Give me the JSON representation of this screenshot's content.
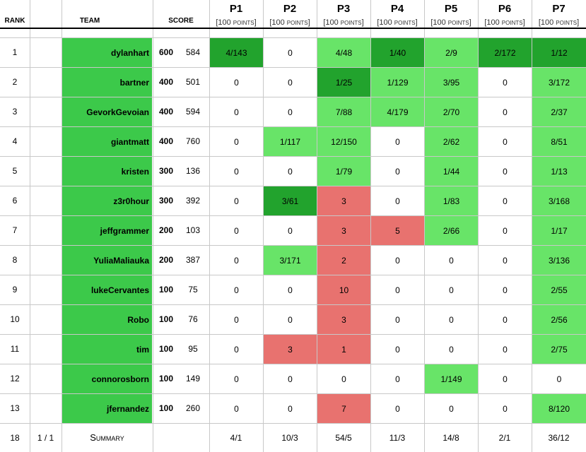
{
  "header": {
    "rank": "RANK",
    "team": "TEAM",
    "score": "SCORE",
    "problems": [
      {
        "name": "P1",
        "points": "[100 points]"
      },
      {
        "name": "P2",
        "points": "[100 points]"
      },
      {
        "name": "P3",
        "points": "[100 points]"
      },
      {
        "name": "P4",
        "points": "[100 points]"
      },
      {
        "name": "P5",
        "points": "[100 points]"
      },
      {
        "name": "P6",
        "points": "[100 points]"
      },
      {
        "name": "P7",
        "points": "[100 points]"
      }
    ]
  },
  "colors": {
    "team": "#3cc94a",
    "first": "#22a32d",
    "solved": "#68e468",
    "failed": "#e8726f",
    "none": "#ffffff"
  },
  "rows": [
    {
      "rank": 1,
      "team": "dylanhart",
      "points": 600,
      "time": 584,
      "cells": [
        {
          "text": "4/143",
          "status": "first"
        },
        {
          "text": "0",
          "status": "none"
        },
        {
          "text": "4/48",
          "status": "solved"
        },
        {
          "text": "1/40",
          "status": "first"
        },
        {
          "text": "2/9",
          "status": "solved"
        },
        {
          "text": "2/172",
          "status": "first"
        },
        {
          "text": "1/12",
          "status": "first"
        }
      ]
    },
    {
      "rank": 2,
      "team": "bartner",
      "points": 400,
      "time": 501,
      "cells": [
        {
          "text": "0",
          "status": "none"
        },
        {
          "text": "0",
          "status": "none"
        },
        {
          "text": "1/25",
          "status": "first"
        },
        {
          "text": "1/129",
          "status": "solved"
        },
        {
          "text": "3/95",
          "status": "solved"
        },
        {
          "text": "0",
          "status": "none"
        },
        {
          "text": "3/172",
          "status": "solved"
        }
      ]
    },
    {
      "rank": 3,
      "team": "GevorkGevoian",
      "points": 400,
      "time": 594,
      "cells": [
        {
          "text": "0",
          "status": "none"
        },
        {
          "text": "0",
          "status": "none"
        },
        {
          "text": "7/88",
          "status": "solved"
        },
        {
          "text": "4/179",
          "status": "solved"
        },
        {
          "text": "2/70",
          "status": "solved"
        },
        {
          "text": "0",
          "status": "none"
        },
        {
          "text": "2/37",
          "status": "solved"
        }
      ]
    },
    {
      "rank": 4,
      "team": "giantmatt",
      "points": 400,
      "time": 760,
      "cells": [
        {
          "text": "0",
          "status": "none"
        },
        {
          "text": "1/117",
          "status": "solved"
        },
        {
          "text": "12/150",
          "status": "solved"
        },
        {
          "text": "0",
          "status": "none"
        },
        {
          "text": "2/62",
          "status": "solved"
        },
        {
          "text": "0",
          "status": "none"
        },
        {
          "text": "8/51",
          "status": "solved"
        }
      ]
    },
    {
      "rank": 5,
      "team": "kristen",
      "points": 300,
      "time": 136,
      "cells": [
        {
          "text": "0",
          "status": "none"
        },
        {
          "text": "0",
          "status": "none"
        },
        {
          "text": "1/79",
          "status": "solved"
        },
        {
          "text": "0",
          "status": "none"
        },
        {
          "text": "1/44",
          "status": "solved"
        },
        {
          "text": "0",
          "status": "none"
        },
        {
          "text": "1/13",
          "status": "solved"
        }
      ]
    },
    {
      "rank": 6,
      "team": "z3r0hour",
      "points": 300,
      "time": 392,
      "cells": [
        {
          "text": "0",
          "status": "none"
        },
        {
          "text": "3/61",
          "status": "first"
        },
        {
          "text": "3",
          "status": "failed"
        },
        {
          "text": "0",
          "status": "none"
        },
        {
          "text": "1/83",
          "status": "solved"
        },
        {
          "text": "0",
          "status": "none"
        },
        {
          "text": "3/168",
          "status": "solved"
        }
      ]
    },
    {
      "rank": 7,
      "team": "jeffgrammer",
      "points": 200,
      "time": 103,
      "cells": [
        {
          "text": "0",
          "status": "none"
        },
        {
          "text": "0",
          "status": "none"
        },
        {
          "text": "3",
          "status": "failed"
        },
        {
          "text": "5",
          "status": "failed"
        },
        {
          "text": "2/66",
          "status": "solved"
        },
        {
          "text": "0",
          "status": "none"
        },
        {
          "text": "1/17",
          "status": "solved"
        }
      ]
    },
    {
      "rank": 8,
      "team": "YuliaMaliauka",
      "points": 200,
      "time": 387,
      "cells": [
        {
          "text": "0",
          "status": "none"
        },
        {
          "text": "3/171",
          "status": "solved"
        },
        {
          "text": "2",
          "status": "failed"
        },
        {
          "text": "0",
          "status": "none"
        },
        {
          "text": "0",
          "status": "none"
        },
        {
          "text": "0",
          "status": "none"
        },
        {
          "text": "3/136",
          "status": "solved"
        }
      ]
    },
    {
      "rank": 9,
      "team": "lukeCervantes",
      "points": 100,
      "time": 75,
      "cells": [
        {
          "text": "0",
          "status": "none"
        },
        {
          "text": "0",
          "status": "none"
        },
        {
          "text": "10",
          "status": "failed"
        },
        {
          "text": "0",
          "status": "none"
        },
        {
          "text": "0",
          "status": "none"
        },
        {
          "text": "0",
          "status": "none"
        },
        {
          "text": "2/55",
          "status": "solved"
        }
      ]
    },
    {
      "rank": 10,
      "team": "Robo",
      "points": 100,
      "time": 76,
      "cells": [
        {
          "text": "0",
          "status": "none"
        },
        {
          "text": "0",
          "status": "none"
        },
        {
          "text": "3",
          "status": "failed"
        },
        {
          "text": "0",
          "status": "none"
        },
        {
          "text": "0",
          "status": "none"
        },
        {
          "text": "0",
          "status": "none"
        },
        {
          "text": "2/56",
          "status": "solved"
        }
      ]
    },
    {
      "rank": 11,
      "team": "tim",
      "points": 100,
      "time": 95,
      "cells": [
        {
          "text": "0",
          "status": "none"
        },
        {
          "text": "3",
          "status": "failed"
        },
        {
          "text": "1",
          "status": "failed"
        },
        {
          "text": "0",
          "status": "none"
        },
        {
          "text": "0",
          "status": "none"
        },
        {
          "text": "0",
          "status": "none"
        },
        {
          "text": "2/75",
          "status": "solved"
        }
      ]
    },
    {
      "rank": 12,
      "team": "connorosborn",
      "points": 100,
      "time": 149,
      "cells": [
        {
          "text": "0",
          "status": "none"
        },
        {
          "text": "0",
          "status": "none"
        },
        {
          "text": "0",
          "status": "none"
        },
        {
          "text": "0",
          "status": "none"
        },
        {
          "text": "1/149",
          "status": "solved"
        },
        {
          "text": "0",
          "status": "none"
        },
        {
          "text": "0",
          "status": "none"
        }
      ]
    },
    {
      "rank": 13,
      "team": "jfernandez",
      "points": 100,
      "time": 260,
      "cells": [
        {
          "text": "0",
          "status": "none"
        },
        {
          "text": "0",
          "status": "none"
        },
        {
          "text": "7",
          "status": "failed"
        },
        {
          "text": "0",
          "status": "none"
        },
        {
          "text": "0",
          "status": "none"
        },
        {
          "text": "0",
          "status": "none"
        },
        {
          "text": "8/120",
          "status": "solved"
        }
      ]
    }
  ],
  "summary": {
    "count": 18,
    "fraction": "1 / 1",
    "label": "Summary",
    "cells": [
      "4/1",
      "10/3",
      "54/5",
      "11/3",
      "14/8",
      "2/1",
      "36/12"
    ]
  }
}
